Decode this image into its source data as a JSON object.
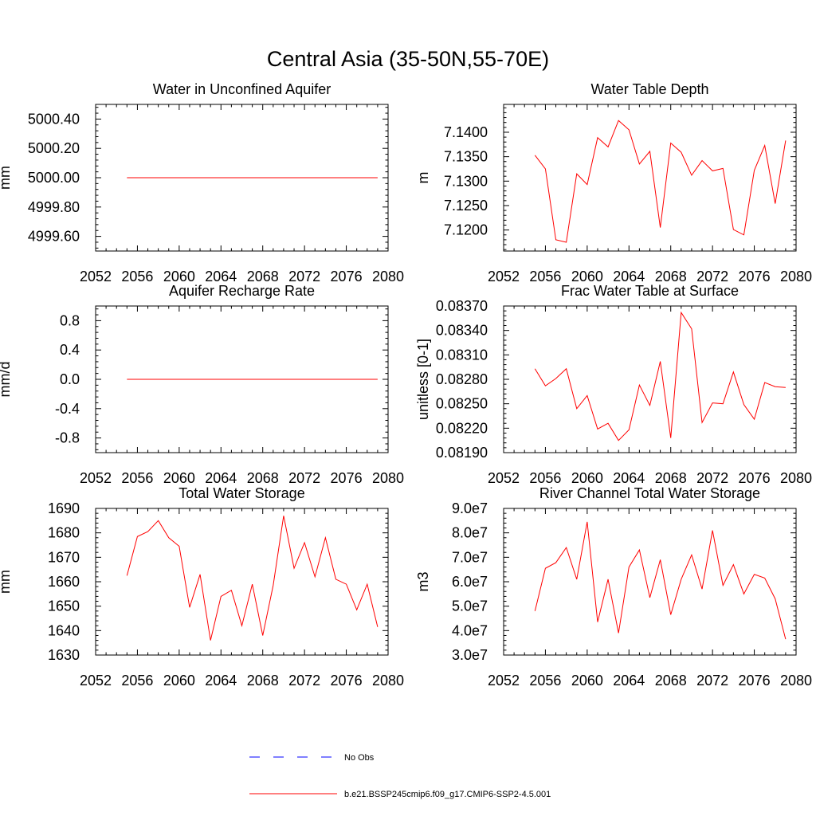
{
  "title": "Central Asia (35-50N,55-70E)",
  "colors": {
    "model": "#ff0000",
    "obs": "#0000ff",
    "axis": "#000000"
  },
  "legend": {
    "obs_label": "No Obs",
    "model_label": "b.e21.BSSP245cmip6.f09_g17.CMIP6-SSP2-4.5.001"
  },
  "chart_data": [
    {
      "type": "line",
      "title": "Water in Unconfined Aquifer",
      "ylabel": "mm",
      "xlim": [
        2052,
        2080
      ],
      "ylim": [
        4999.5,
        5000.5
      ],
      "xticks": [
        2052,
        2056,
        2060,
        2064,
        2068,
        2072,
        2076,
        2080
      ],
      "yticks": [
        4999.6,
        4999.8,
        5000.0,
        5000.2,
        5000.4
      ],
      "ytick_labels": [
        "4999.60",
        "4999.80",
        "5000.00",
        "5000.20",
        "5000.40"
      ],
      "series": [
        {
          "name": "b.e21.BSSP245cmip6.f09_g17.CMIP6-SSP2-4.5.001",
          "x": [
            2055,
            2056,
            2057,
            2058,
            2059,
            2060,
            2061,
            2062,
            2063,
            2064,
            2065,
            2066,
            2067,
            2068,
            2069,
            2070,
            2071,
            2072,
            2073,
            2074,
            2075,
            2076,
            2077,
            2078,
            2079
          ],
          "y": [
            5000,
            5000,
            5000,
            5000,
            5000,
            5000,
            5000,
            5000,
            5000,
            5000,
            5000,
            5000,
            5000,
            5000,
            5000,
            5000,
            5000,
            5000,
            5000,
            5000,
            5000,
            5000,
            5000,
            5000,
            5000
          ]
        }
      ]
    },
    {
      "type": "line",
      "title": "Water Table Depth",
      "ylabel": "m",
      "xlim": [
        2052,
        2080
      ],
      "ylim": [
        7.1157,
        7.1457
      ],
      "xticks": [
        2052,
        2056,
        2060,
        2064,
        2068,
        2072,
        2076,
        2080
      ],
      "yticks": [
        7.12,
        7.125,
        7.13,
        7.135,
        7.14
      ],
      "ytick_labels": [
        "7.1200",
        "7.1250",
        "7.1300",
        "7.1350",
        "7.1400"
      ],
      "series": [
        {
          "name": "b.e21.BSSP245cmip6.f09_g17.CMIP6-SSP2-4.5.001",
          "x": [
            2055,
            2056,
            2057,
            2058,
            2059,
            2060,
            2061,
            2062,
            2063,
            2064,
            2065,
            2066,
            2067,
            2068,
            2069,
            2070,
            2071,
            2072,
            2073,
            2074,
            2075,
            2076,
            2077,
            2078,
            2079
          ],
          "y": [
            7.1353,
            7.1325,
            7.118,
            7.1175,
            7.1315,
            7.1293,
            7.1389,
            7.137,
            7.1424,
            7.1405,
            7.1335,
            7.1361,
            7.1205,
            7.1378,
            7.1359,
            7.1312,
            7.1342,
            7.1321,
            7.1326,
            7.1201,
            7.119,
            7.1322,
            7.1373,
            7.1254,
            7.1383
          ]
        }
      ]
    },
    {
      "type": "line",
      "title": "Aquifer Recharge Rate",
      "ylabel": "mm/d",
      "xlim": [
        2052,
        2080
      ],
      "ylim": [
        -1.0,
        1.0
      ],
      "xticks": [
        2052,
        2056,
        2060,
        2064,
        2068,
        2072,
        2076,
        2080
      ],
      "yticks": [
        -0.8,
        -0.4,
        0.0,
        0.4,
        0.8
      ],
      "ytick_labels": [
        "-0.8",
        "-0.4",
        "0.0",
        "0.4",
        "0.8"
      ],
      "series": [
        {
          "name": "b.e21.BSSP245cmip6.f09_g17.CMIP6-SSP2-4.5.001",
          "x": [
            2055,
            2056,
            2057,
            2058,
            2059,
            2060,
            2061,
            2062,
            2063,
            2064,
            2065,
            2066,
            2067,
            2068,
            2069,
            2070,
            2071,
            2072,
            2073,
            2074,
            2075,
            2076,
            2077,
            2078,
            2079
          ],
          "y": [
            0,
            0,
            0,
            0,
            0,
            0,
            0,
            0,
            0,
            0,
            0,
            0,
            0,
            0,
            0,
            0,
            0,
            0,
            0,
            0,
            0,
            0,
            0,
            0,
            0
          ]
        }
      ]
    },
    {
      "type": "line",
      "title": "Frac Water Table at Surface",
      "ylabel": "unitless [0-1]",
      "xlim": [
        2052,
        2080
      ],
      "ylim": [
        0.0819,
        0.0837
      ],
      "xticks": [
        2052,
        2056,
        2060,
        2064,
        2068,
        2072,
        2076,
        2080
      ],
      "yticks": [
        0.0819,
        0.0822,
        0.0825,
        0.0828,
        0.0831,
        0.0834,
        0.0837
      ],
      "ytick_labels": [
        "0.08190",
        "0.08220",
        "0.08250",
        "0.08280",
        "0.08310",
        "0.08340",
        "0.08370"
      ],
      "series": [
        {
          "name": "b.e21.BSSP245cmip6.f09_g17.CMIP6-SSP2-4.5.001",
          "x": [
            2055,
            2056,
            2057,
            2058,
            2059,
            2060,
            2061,
            2062,
            2063,
            2064,
            2065,
            2066,
            2067,
            2068,
            2069,
            2070,
            2071,
            2072,
            2073,
            2074,
            2075,
            2076,
            2077,
            2078,
            2079
          ],
          "y": [
            0.08293,
            0.08272,
            0.08281,
            0.08293,
            0.08244,
            0.0826,
            0.08219,
            0.08226,
            0.08205,
            0.08218,
            0.08273,
            0.08248,
            0.08302,
            0.08208,
            0.08362,
            0.08342,
            0.08227,
            0.08251,
            0.0825,
            0.08289,
            0.08249,
            0.08231,
            0.08276,
            0.08271,
            0.0827
          ]
        }
      ]
    },
    {
      "type": "line",
      "title": "Total Water Storage",
      "ylabel": "mm",
      "xlim": [
        2052,
        2080
      ],
      "ylim": [
        1630,
        1690
      ],
      "xticks": [
        2052,
        2056,
        2060,
        2064,
        2068,
        2072,
        2076,
        2080
      ],
      "yticks": [
        1630,
        1640,
        1650,
        1660,
        1670,
        1680,
        1690
      ],
      "ytick_labels": [
        "1630",
        "1640",
        "1650",
        "1660",
        "1670",
        "1680",
        "1690"
      ],
      "series": [
        {
          "name": "b.e21.BSSP245cmip6.f09_g17.CMIP6-SSP2-4.5.001",
          "x": [
            2055,
            2056,
            2057,
            2058,
            2059,
            2060,
            2061,
            2062,
            2063,
            2064,
            2065,
            2066,
            2067,
            2068,
            2069,
            2070,
            2071,
            2072,
            2073,
            2074,
            2075,
            2076,
            2077,
            2078,
            2079
          ],
          "y": [
            1662.5,
            1678.5,
            1680.5,
            1685.0,
            1678.0,
            1674.5,
            1649.5,
            1663.0,
            1636.0,
            1654.0,
            1656.5,
            1642.0,
            1659.0,
            1638.0,
            1658.5,
            1687.0,
            1665.5,
            1676.0,
            1662.0,
            1678.0,
            1661.0,
            1659.0,
            1648.5,
            1659.0,
            1641.5
          ]
        }
      ]
    },
    {
      "type": "line",
      "title": "River Channel Total Water Storage",
      "ylabel": "m3",
      "xlim": [
        2052,
        2080
      ],
      "ylim": [
        30000000,
        90000000
      ],
      "xticks": [
        2052,
        2056,
        2060,
        2064,
        2068,
        2072,
        2076,
        2080
      ],
      "yticks": [
        30000000,
        40000000,
        50000000,
        60000000,
        70000000,
        80000000,
        90000000
      ],
      "ytick_labels": [
        "3.0e7",
        "4.0e7",
        "5.0e7",
        "6.0e7",
        "7.0e7",
        "8.0e7",
        "9.0e7"
      ],
      "series": [
        {
          "name": "b.e21.BSSP245cmip6.f09_g17.CMIP6-SSP2-4.5.001",
          "x": [
            2055,
            2056,
            2057,
            2058,
            2059,
            2060,
            2061,
            2062,
            2063,
            2064,
            2065,
            2066,
            2067,
            2068,
            2069,
            2070,
            2071,
            2072,
            2073,
            2074,
            2075,
            2076,
            2077,
            2078,
            2079
          ],
          "y": [
            48000000,
            65500000,
            67800000,
            74000000,
            61000000,
            84500000,
            43500000,
            61000000,
            39000000,
            66000000,
            73000000,
            53500000,
            69000000,
            46500000,
            61000000,
            71000000,
            57000000,
            81000000,
            58500000,
            67000000,
            55000000,
            63000000,
            61500000,
            53000000,
            36500000
          ]
        }
      ]
    }
  ]
}
